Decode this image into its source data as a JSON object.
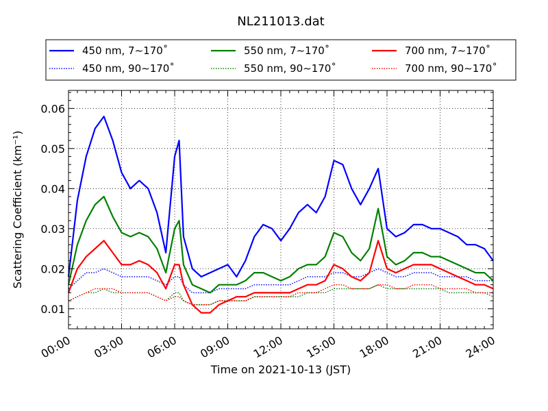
{
  "chart_data": {
    "type": "line",
    "title": "NL211013.dat",
    "xlabel": "Time on 2021-10-13 (JST)",
    "ylabel": "Scattering Coefficient (km⁻¹)",
    "x_unit": "hours",
    "xlim": [
      0,
      24
    ],
    "ylim": [
      0.005,
      0.0645
    ],
    "xticks": [
      0,
      3,
      6,
      9,
      12,
      15,
      18,
      21,
      24
    ],
    "xtick_labels": [
      "00:00",
      "03:00",
      "06:00",
      "09:00",
      "12:00",
      "15:00",
      "18:00",
      "21:00",
      "24:00"
    ],
    "yticks": [
      0.01,
      0.02,
      0.03,
      0.04,
      0.05,
      0.06
    ],
    "ytick_labels": [
      "0.01",
      "0.02",
      "0.03",
      "0.04",
      "0.05",
      "0.06"
    ],
    "grid": true,
    "legend_position": "top",
    "x": [
      0,
      0.5,
      1,
      1.5,
      2,
      2.5,
      3,
      3.5,
      4,
      4.5,
      5,
      5.5,
      6,
      6.25,
      6.5,
      7,
      7.5,
      8,
      8.5,
      9,
      9.5,
      10,
      10.5,
      11,
      11.5,
      12,
      12.5,
      13,
      13.5,
      14,
      14.5,
      15,
      15.5,
      16,
      16.5,
      17,
      17.5,
      18,
      18.5,
      19,
      19.5,
      20,
      20.5,
      21,
      21.5,
      22,
      22.5,
      23,
      23.5,
      24
    ],
    "series": [
      {
        "name": "450 nm, 7∼170˚",
        "color": "#0000ff",
        "style": "solid",
        "values": [
          0.018,
          0.037,
          0.048,
          0.055,
          0.058,
          0.052,
          0.044,
          0.04,
          0.042,
          0.04,
          0.034,
          0.024,
          0.048,
          0.052,
          0.028,
          0.02,
          0.018,
          0.019,
          0.02,
          0.021,
          0.018,
          0.022,
          0.028,
          0.031,
          0.03,
          0.027,
          0.03,
          0.034,
          0.036,
          0.034,
          0.038,
          0.047,
          0.046,
          0.04,
          0.036,
          0.04,
          0.045,
          0.03,
          0.028,
          0.029,
          0.031,
          0.031,
          0.03,
          0.03,
          0.029,
          0.028,
          0.026,
          0.026,
          0.025,
          0.022
        ]
      },
      {
        "name": "450 nm, 90∼170˚",
        "color": "#0000ff",
        "style": "dotted",
        "values": [
          0.015,
          0.017,
          0.019,
          0.019,
          0.02,
          0.019,
          0.018,
          0.018,
          0.018,
          0.018,
          0.017,
          0.016,
          0.018,
          0.018,
          0.016,
          0.014,
          0.014,
          0.014,
          0.015,
          0.015,
          0.015,
          0.015,
          0.016,
          0.016,
          0.016,
          0.016,
          0.016,
          0.017,
          0.018,
          0.018,
          0.018,
          0.019,
          0.019,
          0.018,
          0.018,
          0.019,
          0.02,
          0.019,
          0.018,
          0.018,
          0.019,
          0.019,
          0.019,
          0.018,
          0.018,
          0.018,
          0.018,
          0.017,
          0.017,
          0.017
        ]
      },
      {
        "name": "550 nm, 7∼170˚",
        "color": "#008000",
        "style": "solid",
        "values": [
          0.016,
          0.026,
          0.032,
          0.036,
          0.038,
          0.033,
          0.029,
          0.028,
          0.029,
          0.028,
          0.025,
          0.019,
          0.03,
          0.032,
          0.021,
          0.016,
          0.015,
          0.014,
          0.016,
          0.016,
          0.016,
          0.017,
          0.019,
          0.019,
          0.018,
          0.017,
          0.018,
          0.02,
          0.021,
          0.021,
          0.023,
          0.029,
          0.028,
          0.024,
          0.022,
          0.025,
          0.035,
          0.023,
          0.021,
          0.022,
          0.024,
          0.024,
          0.023,
          0.023,
          0.022,
          0.021,
          0.02,
          0.019,
          0.019,
          0.017
        ]
      },
      {
        "name": "550 nm, 90∼170˚",
        "color": "#008000",
        "style": "dotted",
        "values": [
          0.012,
          0.013,
          0.014,
          0.014,
          0.015,
          0.014,
          0.014,
          0.014,
          0.014,
          0.014,
          0.013,
          0.012,
          0.014,
          0.014,
          0.012,
          0.011,
          0.011,
          0.011,
          0.012,
          0.012,
          0.012,
          0.012,
          0.013,
          0.013,
          0.013,
          0.013,
          0.013,
          0.013,
          0.014,
          0.014,
          0.014,
          0.015,
          0.015,
          0.015,
          0.015,
          0.015,
          0.016,
          0.015,
          0.015,
          0.015,
          0.015,
          0.015,
          0.015,
          0.015,
          0.014,
          0.014,
          0.014,
          0.014,
          0.014,
          0.013
        ]
      },
      {
        "name": "700 nm, 7∼170˚",
        "color": "#ff0000",
        "style": "solid",
        "values": [
          0.014,
          0.02,
          0.023,
          0.025,
          0.027,
          0.024,
          0.021,
          0.021,
          0.022,
          0.021,
          0.019,
          0.015,
          0.021,
          0.021,
          0.016,
          0.011,
          0.009,
          0.009,
          0.011,
          0.012,
          0.013,
          0.013,
          0.014,
          0.014,
          0.014,
          0.014,
          0.014,
          0.015,
          0.016,
          0.016,
          0.017,
          0.021,
          0.02,
          0.018,
          0.017,
          0.019,
          0.027,
          0.02,
          0.019,
          0.02,
          0.021,
          0.021,
          0.021,
          0.02,
          0.019,
          0.018,
          0.017,
          0.016,
          0.016,
          0.015
        ]
      },
      {
        "name": "700 nm, 90∼170˚",
        "color": "#ff0000",
        "style": "dotted",
        "values": [
          0.012,
          0.013,
          0.014,
          0.015,
          0.015,
          0.015,
          0.014,
          0.014,
          0.014,
          0.014,
          0.013,
          0.012,
          0.013,
          0.013,
          0.012,
          0.011,
          0.011,
          0.011,
          0.012,
          0.012,
          0.012,
          0.012,
          0.013,
          0.013,
          0.013,
          0.013,
          0.013,
          0.014,
          0.014,
          0.014,
          0.015,
          0.016,
          0.016,
          0.015,
          0.015,
          0.015,
          0.016,
          0.016,
          0.015,
          0.015,
          0.016,
          0.016,
          0.016,
          0.015,
          0.015,
          0.015,
          0.015,
          0.014,
          0.014,
          0.014
        ]
      }
    ]
  }
}
